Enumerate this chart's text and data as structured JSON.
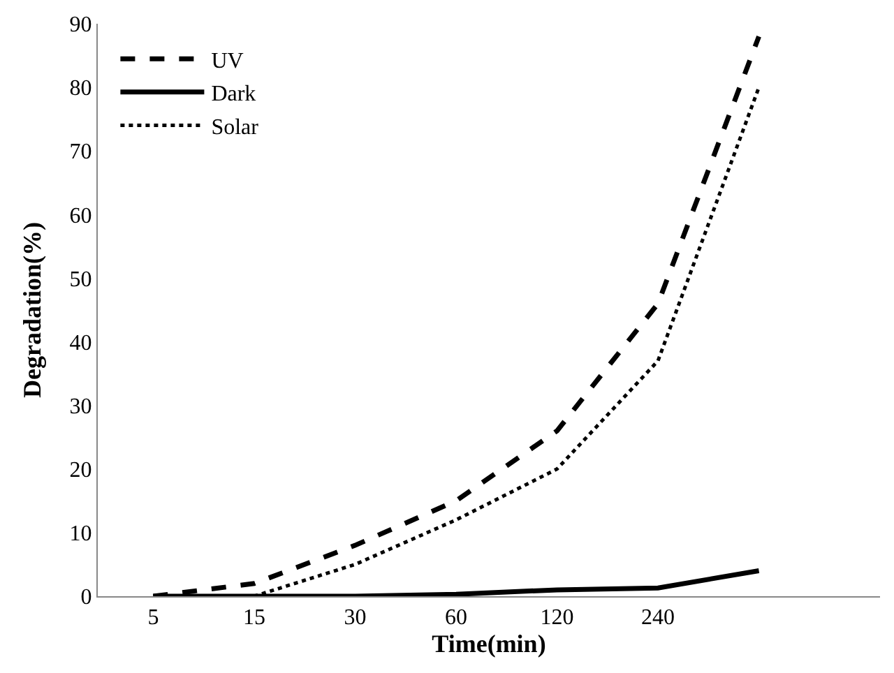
{
  "chart_data": {
    "type": "line",
    "xlabel": "Time(min)",
    "ylabel": "Degradation(%)",
    "categories": [
      "5",
      "15",
      "30",
      "60",
      "120",
      "240",
      null
    ],
    "series": [
      {
        "name": "UV",
        "color": "#000000",
        "line_style": "dashed",
        "values": [
          0,
          2,
          8,
          15,
          26,
          46,
          88
        ]
      },
      {
        "name": "Dark",
        "color": "#000000",
        "line_style": "solid",
        "values": [
          0,
          0,
          0,
          0.3,
          1,
          1.3,
          4
        ]
      },
      {
        "name": "Solar",
        "color": "#000000",
        "line_style": "dotted",
        "values": [
          0,
          0,
          5,
          12,
          20,
          37,
          80
        ]
      }
    ],
    "ylim": [
      0,
      90
    ],
    "yticks": [
      0,
      10,
      20,
      30,
      40,
      50,
      60,
      70,
      80,
      90
    ],
    "legend": "top left",
    "marker": "none"
  }
}
